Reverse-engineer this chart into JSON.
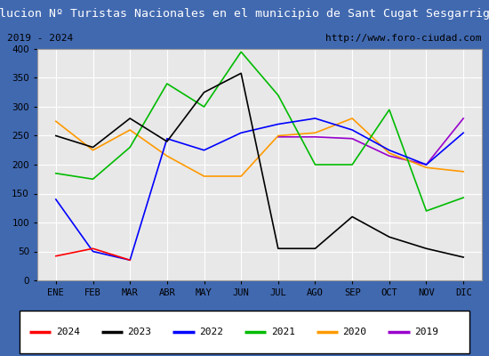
{
  "title": "Evolucion Nº Turistas Nacionales en el municipio de Sant Cugat Sesgarrigues",
  "subtitle_left": "2019 - 2024",
  "subtitle_right": "http://www.foro-ciudad.com",
  "months": [
    "ENE",
    "FEB",
    "MAR",
    "ABR",
    "MAY",
    "JUN",
    "JUL",
    "AGO",
    "SEP",
    "OCT",
    "NOV",
    "DIC"
  ],
  "ylim": [
    0,
    400
  ],
  "yticks": [
    0,
    50,
    100,
    150,
    200,
    250,
    300,
    350,
    400
  ],
  "series": {
    "2024": {
      "color": "#ff0000",
      "data": [
        42,
        55,
        35,
        null,
        null,
        null,
        null,
        null,
        null,
        null,
        null,
        null
      ]
    },
    "2023": {
      "color": "#000000",
      "data": [
        250,
        230,
        280,
        240,
        325,
        358,
        55,
        55,
        110,
        75,
        55,
        40
      ]
    },
    "2022": {
      "color": "#0000ff",
      "data": [
        140,
        50,
        35,
        245,
        225,
        255,
        270,
        280,
        260,
        225,
        200,
        255
      ]
    },
    "2021": {
      "color": "#00bb00",
      "data": [
        185,
        175,
        230,
        340,
        300,
        395,
        320,
        200,
        200,
        295,
        120,
        143
      ]
    },
    "2020": {
      "color": "#ff9900",
      "data": [
        275,
        225,
        260,
        215,
        180,
        180,
        250,
        255,
        280,
        220,
        195,
        188
      ]
    },
    "2019": {
      "color": "#9900cc",
      "data": [
        null,
        null,
        null,
        null,
        null,
        null,
        248,
        248,
        245,
        215,
        200,
        280
      ]
    }
  },
  "title_bg_color": "#4169b0",
  "title_text_color": "#ffffff",
  "subtitle_box_color": "#e8e8e8",
  "plot_bg_color": "#e8e8e8",
  "grid_color": "#ffffff",
  "legend_order": [
    "2024",
    "2023",
    "2022",
    "2021",
    "2020",
    "2019"
  ]
}
